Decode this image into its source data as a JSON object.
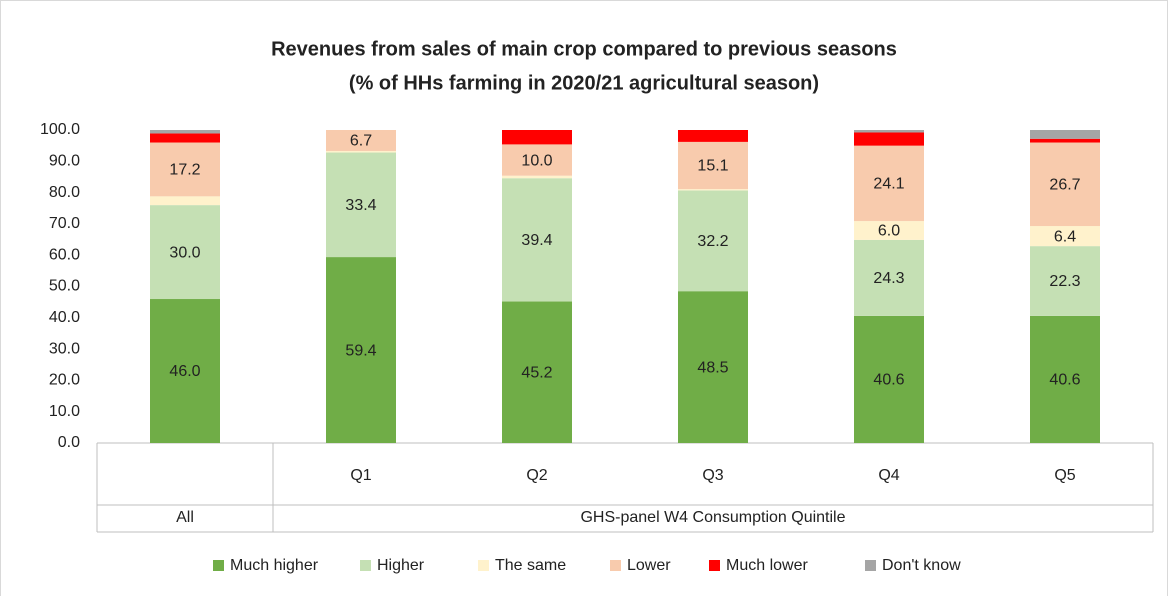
{
  "chart_data": {
    "type": "stacked_bar",
    "title": [
      "Revenues from sales of main crop compared to previous seasons",
      "(% of HHs farming in 2020/21 agricultural season)"
    ],
    "categories": [
      "All",
      "Q1",
      "Q2",
      "Q3",
      "Q4",
      "Q5"
    ],
    "group_label": "GHS-panel W4 Consumption Quintile",
    "series": [
      {
        "name": "Much higher",
        "color": "#70ad47",
        "values": [
          46.0,
          59.4,
          45.2,
          48.5,
          40.6,
          40.6
        ],
        "value_labels": [
          "46.0",
          "59.4",
          "45.2",
          "48.5",
          "40.6",
          "40.6"
        ]
      },
      {
        "name": "Higher",
        "color": "#c5e0b4",
        "values": [
          30.0,
          33.4,
          39.4,
          32.2,
          24.3,
          22.3
        ],
        "value_labels": [
          "30.0",
          "33.4",
          "39.4",
          "32.2",
          "24.3",
          "22.3"
        ]
      },
      {
        "name": "The same",
        "color": "#fff2cc",
        "values": [
          2.8,
          0.5,
          0.8,
          0.4,
          6.0,
          6.4
        ],
        "value_labels": [
          null,
          null,
          null,
          null,
          "6.0",
          "6.4"
        ]
      },
      {
        "name": "Lower",
        "color": "#f8cbad",
        "values": [
          17.2,
          6.7,
          10.0,
          15.1,
          24.1,
          26.7
        ],
        "value_labels": [
          "17.2",
          "6.7",
          "10.0",
          "15.1",
          "24.1",
          "26.7"
        ]
      },
      {
        "name": "Much lower",
        "color": "#ff0000",
        "values": [
          2.9,
          0,
          4.6,
          3.8,
          4.2,
          1.2
        ]
      },
      {
        "name": "Don't know",
        "color": "#a5a5a5",
        "values": [
          1.1,
          0,
          0,
          0,
          0.8,
          2.8
        ]
      }
    ],
    "ylim": [
      0,
      100
    ],
    "yticks": [
      {
        "value": 0,
        "label": "0.0"
      },
      {
        "value": 10,
        "label": "10.0"
      },
      {
        "value": 20,
        "label": "20.0"
      },
      {
        "value": 30,
        "label": "30.0"
      },
      {
        "value": 40,
        "label": "40.0"
      },
      {
        "value": 50,
        "label": "50.0"
      },
      {
        "value": 60,
        "label": "60.0"
      },
      {
        "value": 70,
        "label": "70.0"
      },
      {
        "value": 80,
        "label": "80.0"
      },
      {
        "value": 90,
        "label": "90.0"
      },
      {
        "value": 100,
        "label": "100.0"
      }
    ],
    "legend": "bottom"
  }
}
